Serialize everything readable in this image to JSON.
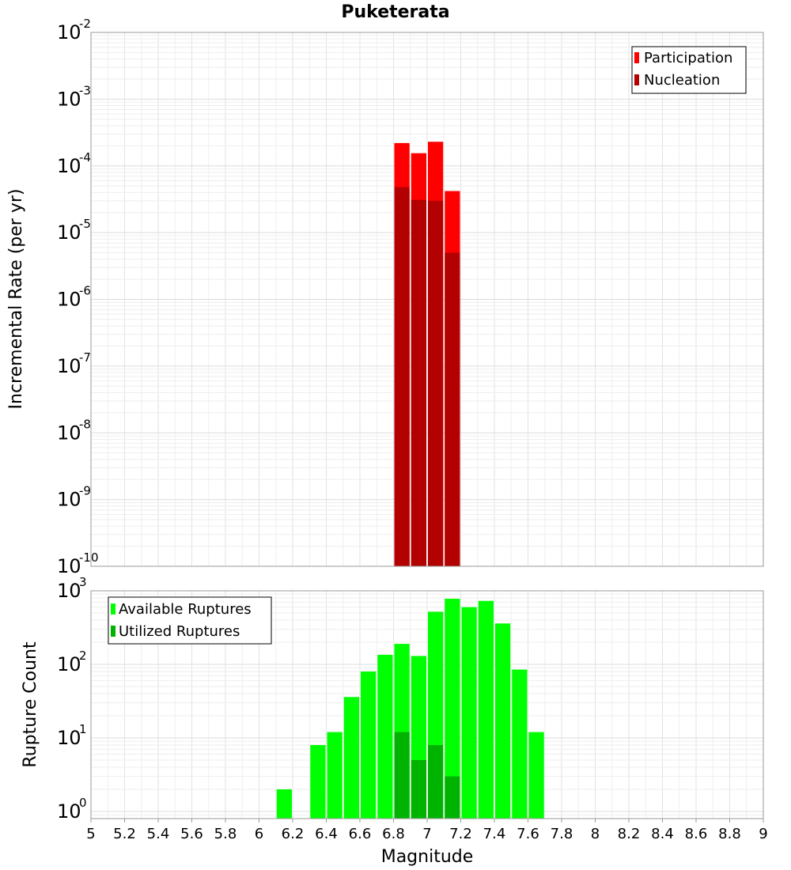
{
  "chart_data": [
    {
      "type": "bar",
      "title": "Puketerata",
      "xlabel": "Magnitude",
      "ylabel": "Incremental Rate (per yr)",
      "yscale": "log",
      "xlim": [
        5,
        9
      ],
      "ylim": [
        1e-10,
        0.01
      ],
      "ytick_bases": [
        "10",
        "10",
        "10",
        "10",
        "10",
        "10",
        "10",
        "10",
        "10"
      ],
      "ytick_exps": [
        "-10",
        "-9",
        "-8",
        "-7",
        "-6",
        "-5",
        "-4",
        "-3",
        "-2"
      ],
      "ytick_values": [
        1e-10,
        1e-09,
        1e-08,
        1e-07,
        1e-06,
        1e-05,
        0.0001,
        0.001,
        0.01
      ],
      "bin_width": 0.1,
      "series": [
        {
          "name": "Participation",
          "color": "#ff0000",
          "x": [
            6.85,
            6.95,
            7.05,
            7.15
          ],
          "values": [
            0.00022,
            0.000155,
            0.00023,
            4.2e-05
          ]
        },
        {
          "name": "Nucleation",
          "color": "#b30000",
          "x": [
            6.85,
            6.95,
            7.05,
            7.15
          ],
          "values": [
            4.8e-05,
            3.1e-05,
            3e-05,
            5e-06
          ]
        }
      ],
      "legend": [
        "Participation",
        "Nucleation"
      ],
      "legend_position": "top-right",
      "grid": true
    },
    {
      "type": "bar",
      "xlabel": "Magnitude",
      "ylabel": "Rupture Count",
      "yscale": "log",
      "xlim": [
        5,
        9
      ],
      "ylim": [
        0.8,
        1000
      ],
      "xticks": [
        "5",
        "5.2",
        "5.4",
        "5.6",
        "5.8",
        "6",
        "6.2",
        "6.4",
        "6.6",
        "6.8",
        "7",
        "7.2",
        "7.4",
        "7.6",
        "7.8",
        "8",
        "8.2",
        "8.4",
        "8.6",
        "8.8",
        "9"
      ],
      "ytick_bases": [
        "10",
        "10",
        "10",
        "10"
      ],
      "ytick_exps": [
        "0",
        "1",
        "2",
        "3"
      ],
      "ytick_values": [
        1,
        10,
        100,
        1000
      ],
      "bin_width": 0.1,
      "series": [
        {
          "name": "Available Ruptures",
          "color": "#00ff00",
          "x": [
            6.15,
            6.35,
            6.45,
            6.55,
            6.65,
            6.75,
            6.85,
            6.95,
            7.05,
            7.15,
            7.25,
            7.35,
            7.45,
            7.55,
            7.65
          ],
          "values": [
            2,
            8,
            12,
            36,
            80,
            135,
            190,
            130,
            520,
            780,
            600,
            730,
            360,
            85,
            12
          ]
        },
        {
          "name": "Utilized Ruptures",
          "color": "#00b300",
          "x": [
            6.85,
            6.95,
            7.05,
            7.15
          ],
          "values": [
            12,
            5,
            8,
            3
          ]
        }
      ],
      "legend": [
        "Available Ruptures",
        "Utilized Ruptures"
      ],
      "legend_position": "top-left",
      "grid": true
    }
  ]
}
